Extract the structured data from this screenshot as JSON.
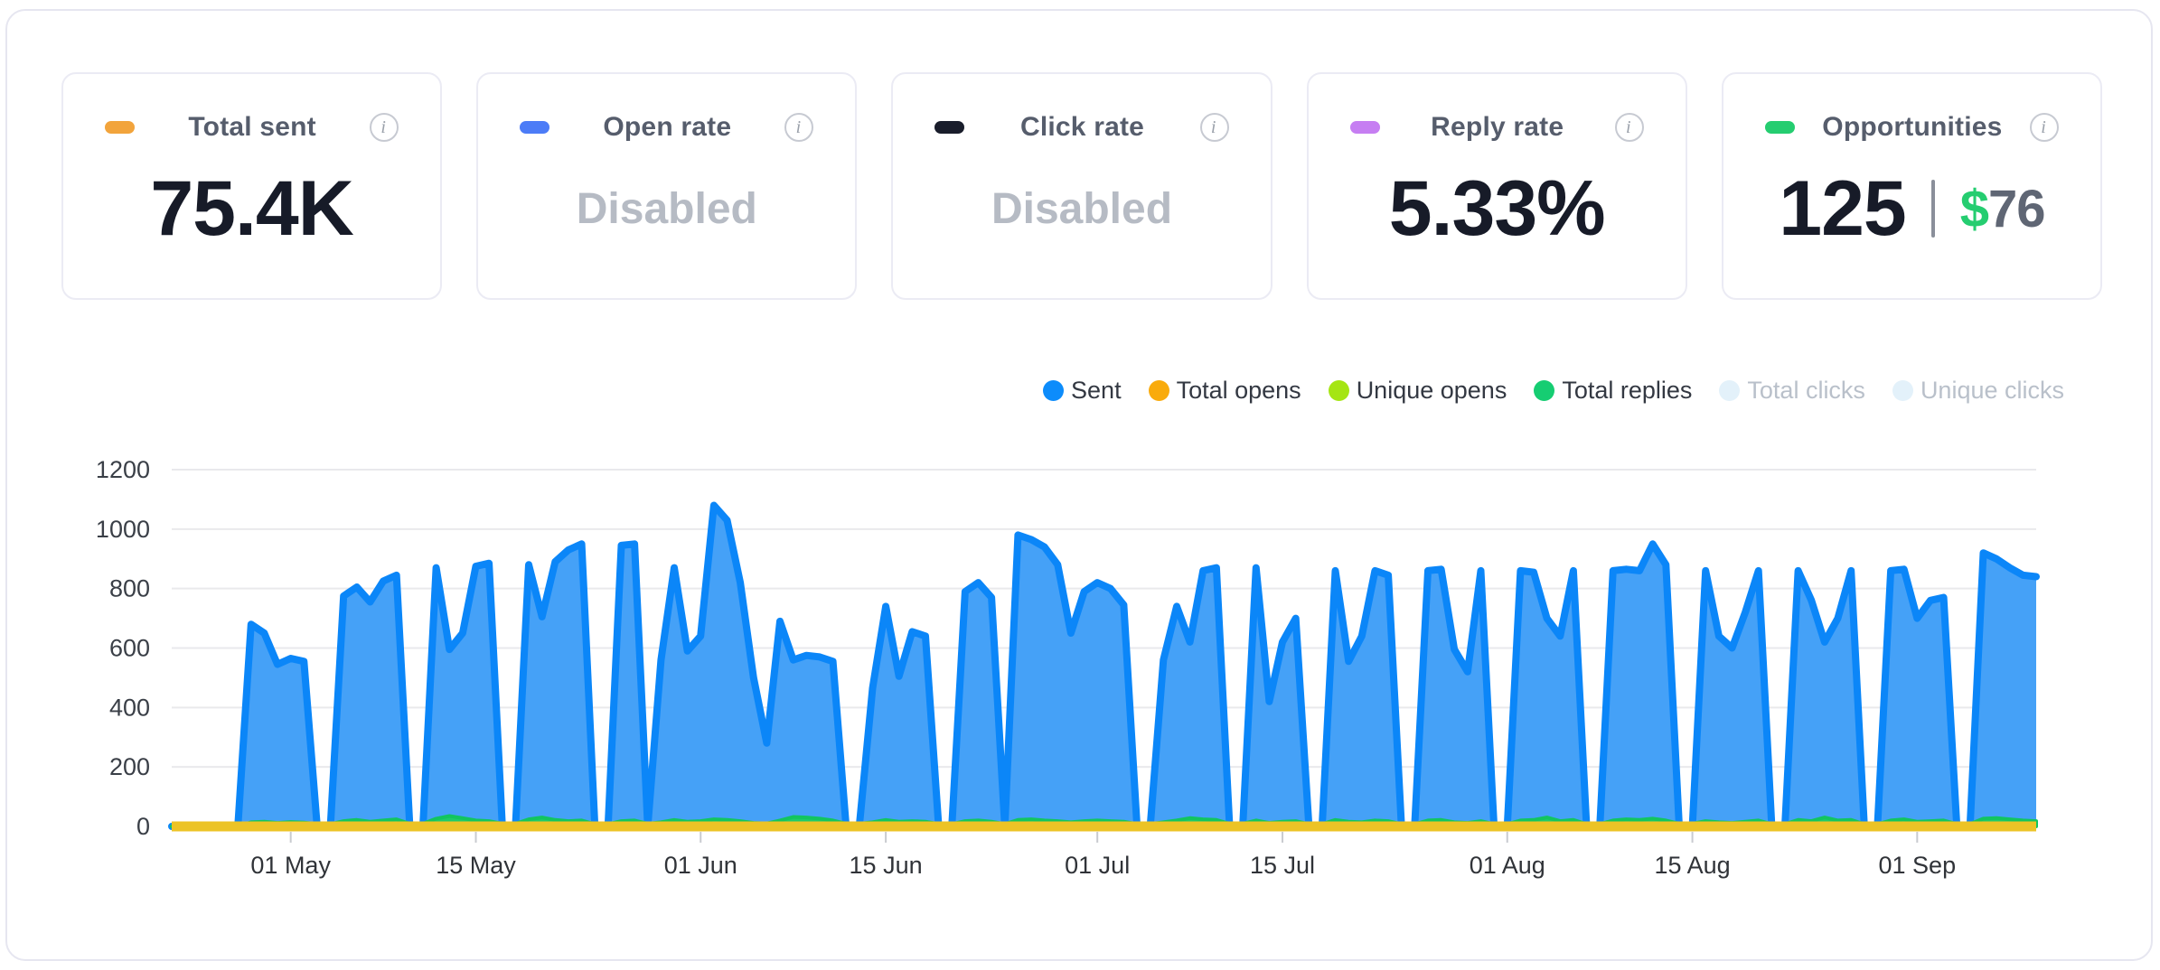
{
  "cards": [
    {
      "label": "Total sent",
      "value": "75.4K",
      "color": "#f2a43c",
      "muted": false
    },
    {
      "label": "Open rate",
      "value": "Disabled",
      "color": "#4c7cf7",
      "muted": true
    },
    {
      "label": "Click rate",
      "value": "Disabled",
      "color": "#191d2b",
      "muted": true
    },
    {
      "label": "Reply rate",
      "value": "5.33%",
      "color": "#c67ef2",
      "muted": false
    },
    {
      "label": "Opportunities",
      "value": "125",
      "revenue_symbol": "$",
      "revenue_amount": "76",
      "color": "#25cd70",
      "muted": false
    }
  ],
  "info_icon_glyph": "i",
  "legend": {
    "items": [
      {
        "label": "Sent",
        "color": "#0d8cfb",
        "enabled": true
      },
      {
        "label": "Total opens",
        "color": "#f9ab0c",
        "enabled": true
      },
      {
        "label": "Unique opens",
        "color": "#a5e513",
        "enabled": true
      },
      {
        "label": "Total replies",
        "color": "#16cd72",
        "enabled": true
      },
      {
        "label": "Total clicks",
        "color": "#e3f1fa",
        "enabled": false
      },
      {
        "label": "Unique clicks",
        "color": "#e3f1fa",
        "enabled": false
      }
    ]
  },
  "chart_data": {
    "type": "area",
    "title": "",
    "xlabel": "",
    "ylabel": "",
    "grid": "horizontal",
    "legend_position": "top-right",
    "ylim": [
      0,
      1200
    ],
    "y_ticks": [
      0,
      200,
      400,
      600,
      800,
      1000,
      1200
    ],
    "start_date": "Apr 22",
    "end_date": "Sep 10",
    "x_ticks": [
      {
        "day": 9,
        "label": "01 May"
      },
      {
        "day": 23,
        "label": "15 May"
      },
      {
        "day": 40,
        "label": "01 Jun"
      },
      {
        "day": 54,
        "label": "15 Jun"
      },
      {
        "day": 70,
        "label": "01 Jul"
      },
      {
        "day": 84,
        "label": "15 Jul"
      },
      {
        "day": 101,
        "label": "01 Aug"
      },
      {
        "day": 115,
        "label": "15 Aug"
      },
      {
        "day": 132,
        "label": "01 Sep"
      }
    ],
    "series": [
      {
        "name": "Sent",
        "stroke": "#0b86f8",
        "fill": "#45a1f7",
        "values": [
          0,
          0,
          0,
          0,
          0,
          0,
          680,
          650,
          545,
          565,
          555,
          0,
          0,
          775,
          805,
          755,
          825,
          845,
          0,
          0,
          870,
          595,
          650,
          875,
          885,
          0,
          0,
          880,
          705,
          890,
          930,
          950,
          0,
          0,
          945,
          950,
          0,
          560,
          870,
          590,
          640,
          1080,
          1030,
          820,
          500,
          280,
          690,
          560,
          575,
          570,
          555,
          0,
          0,
          465,
          740,
          505,
          655,
          640,
          0,
          0,
          790,
          820,
          770,
          0,
          980,
          965,
          940,
          880,
          650,
          790,
          820,
          800,
          745,
          0,
          0,
          560,
          740,
          620,
          860,
          870,
          0,
          0,
          870,
          420,
          620,
          700,
          0,
          0,
          860,
          555,
          640,
          860,
          845,
          0,
          0,
          860,
          865,
          595,
          520,
          860,
          0,
          0,
          860,
          855,
          700,
          640,
          860,
          0,
          0,
          860,
          865,
          860,
          950,
          880,
          0,
          0,
          860,
          640,
          600,
          720,
          860,
          0,
          0,
          860,
          760,
          620,
          700,
          860,
          0,
          0,
          860,
          865,
          700,
          760,
          770,
          0,
          0,
          920,
          900,
          870,
          845,
          840
        ]
      },
      {
        "name": "Total replies",
        "stroke": "#12c55f",
        "fill": "#1ecb6a",
        "values": [
          0,
          0,
          0,
          0,
          0,
          0,
          14,
          16,
          12,
          15,
          13,
          8,
          8,
          18,
          22,
          16,
          20,
          24,
          9,
          9,
          26,
          35,
          28,
          20,
          18,
          9,
          9,
          24,
          30,
          22,
          18,
          20,
          8,
          8,
          18,
          20,
          9,
          14,
          22,
          16,
          18,
          24,
          22,
          18,
          12,
          10,
          20,
          32,
          30,
          26,
          20,
          9,
          9,
          14,
          22,
          16,
          18,
          16,
          8,
          8,
          18,
          20,
          16,
          8,
          22,
          24,
          20,
          18,
          14,
          18,
          20,
          18,
          16,
          8,
          8,
          14,
          20,
          28,
          24,
          22,
          9,
          9,
          20,
          12,
          16,
          18,
          8,
          8,
          22,
          16,
          14,
          20,
          18,
          8,
          8,
          20,
          22,
          14,
          12,
          18,
          8,
          8,
          20,
          22,
          30,
          18,
          22,
          8,
          8,
          20,
          24,
          22,
          26,
          20,
          9,
          9,
          18,
          14,
          12,
          16,
          20,
          8,
          8,
          22,
          18,
          30,
          20,
          22,
          8,
          8,
          20,
          24,
          16,
          18,
          20,
          8,
          8,
          26,
          28,
          24,
          20,
          18
        ]
      },
      {
        "name": "Total opens",
        "stroke": "#ecc326",
        "constant_value": 0,
        "note": "rendered as thick flat line at 0 across full range (tracking disabled)"
      },
      {
        "name": "Unique opens",
        "stroke": "#a5e513",
        "constant_value": 0,
        "note": "flat at 0, hidden beneath Total opens line"
      },
      {
        "name": "Total clicks",
        "disabled": true,
        "note": "not plotted (disabled)"
      },
      {
        "name": "Unique clicks",
        "disabled": true,
        "note": "not plotted (disabled)"
      }
    ]
  }
}
